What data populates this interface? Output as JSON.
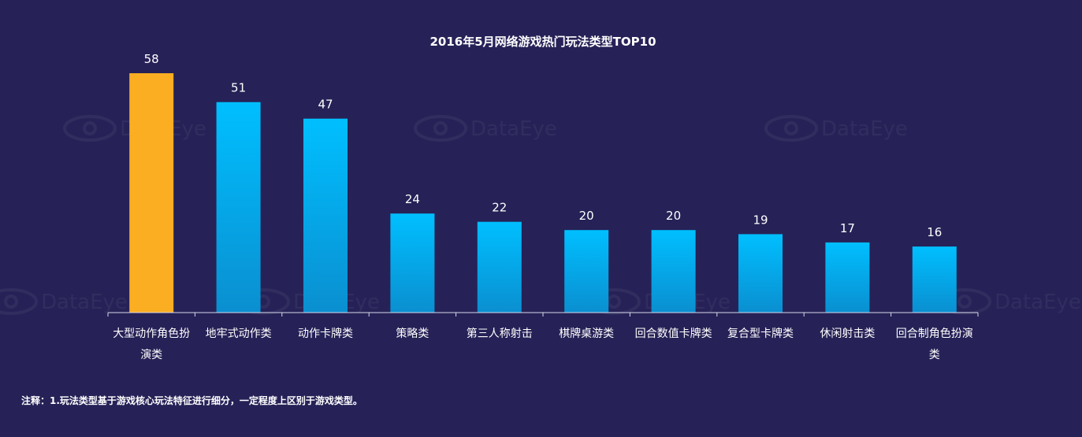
{
  "chart_data": {
    "type": "bar",
    "title": "2016年5月网络游戏热门玩法类型TOP10",
    "categories": [
      [
        "大型动作角色扮",
        "演类"
      ],
      [
        "地牢式动作类"
      ],
      [
        "动作卡牌类"
      ],
      [
        "策略类"
      ],
      [
        "第三人称射击"
      ],
      [
        "棋牌桌游类"
      ],
      [
        "回合数值卡牌类"
      ],
      [
        "复合型卡牌类"
      ],
      [
        "休闲射击类"
      ],
      [
        "回合制角色扮演",
        "类"
      ]
    ],
    "values": [
      58,
      51,
      47,
      24,
      22,
      20,
      20,
      19,
      17,
      16
    ],
    "ylim": [
      0,
      58
    ],
    "grid": false,
    "legend": "none",
    "highlight_index": 0,
    "colors": {
      "highlight": "#FBAE22",
      "bar_top": "#00BFFF",
      "bar_bottom": "#0A8FD0",
      "background": "#262257",
      "axis": "#D8D8E8"
    }
  },
  "watermark": "DataEye",
  "note": "注释：1.玩法类型基于游戏核心玩法特征进行细分，一定程度上区别于游戏类型。"
}
